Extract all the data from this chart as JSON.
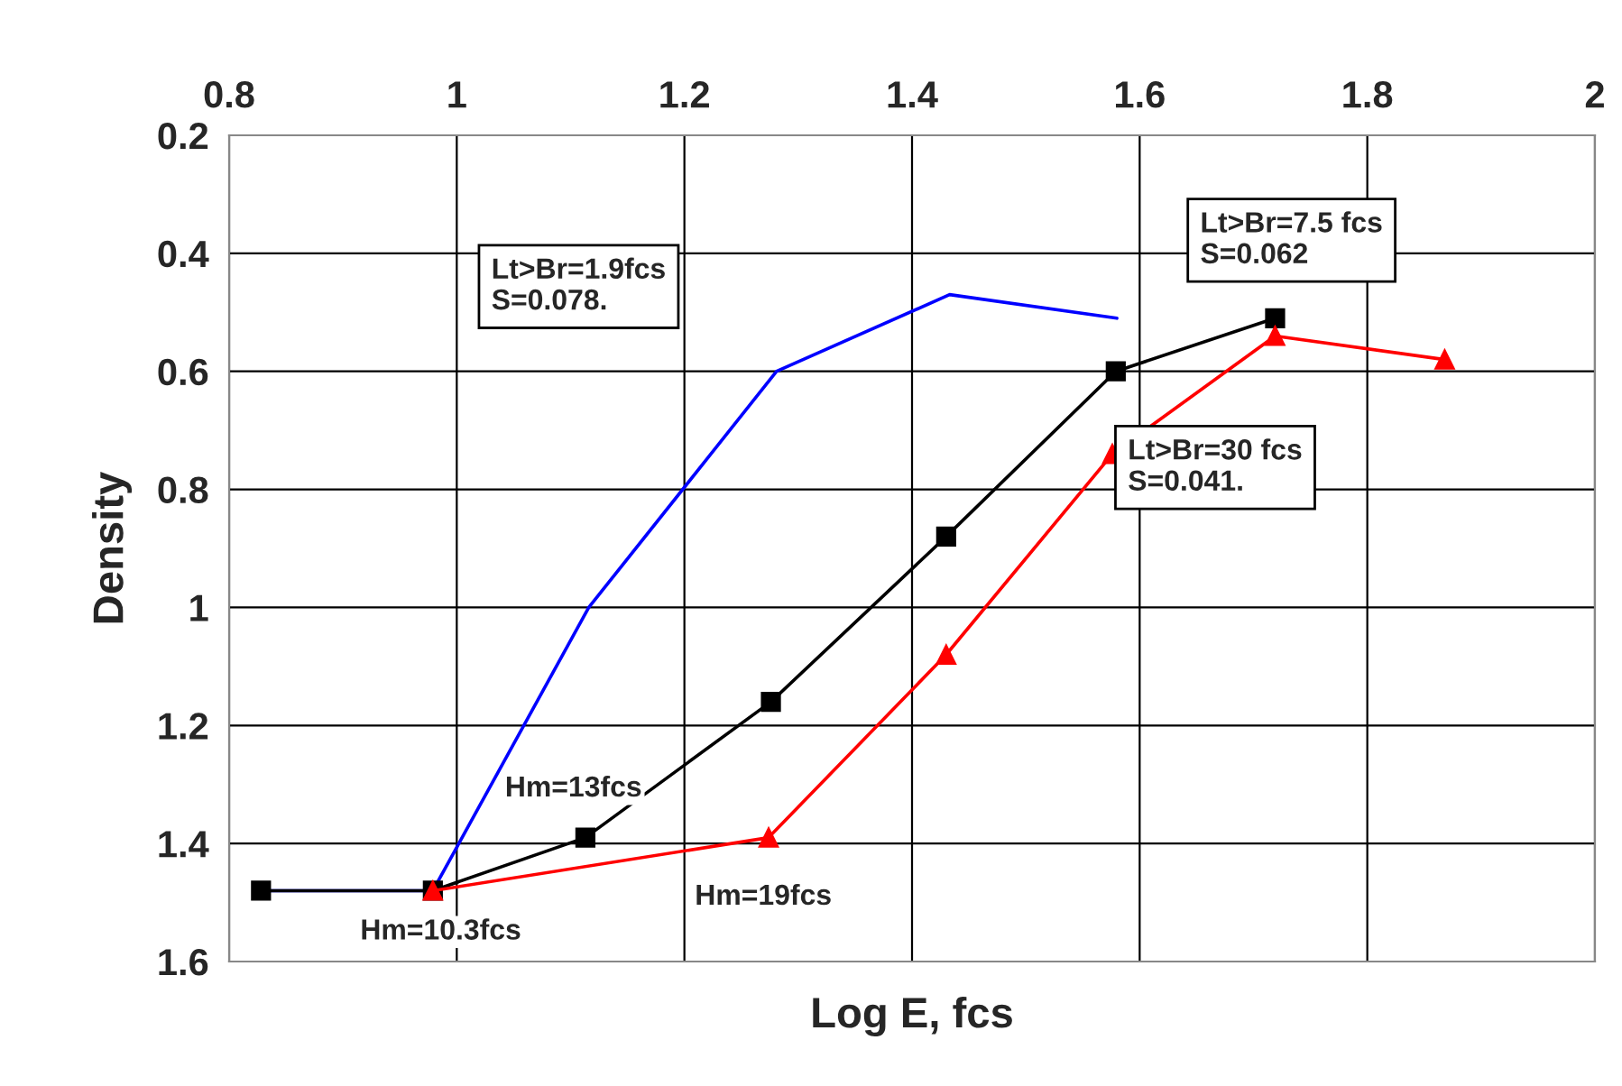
{
  "chart_data": {
    "type": "line",
    "xlabel": "Log E, fcs",
    "ylabel": "Density",
    "xlim": [
      0.8,
      2
    ],
    "xticks": [
      0.8,
      1,
      1.2,
      1.4,
      1.6,
      1.8,
      2
    ],
    "ylim": [
      1.6,
      0.2
    ],
    "yticks": [
      0.2,
      0.4,
      0.6,
      0.8,
      1,
      1.2,
      1.4,
      1.6
    ],
    "grid": true,
    "legend": false,
    "series": [
      {
        "color": "#0000ff",
        "marker": "none",
        "x": [
          0.828,
          0.979,
          1.116,
          1.281,
          1.433,
          1.58
        ],
        "values": [
          1.48,
          1.48,
          1.0,
          0.6,
          0.47,
          0.51
        ]
      },
      {
        "color": "#000000",
        "marker": "square",
        "x": [
          0.828,
          0.979,
          1.113,
          1.276,
          1.43,
          1.579,
          1.719
        ],
        "values": [
          1.48,
          1.48,
          1.39,
          1.16,
          0.88,
          0.6,
          0.51
        ]
      },
      {
        "color": "#ff0000",
        "marker": "triangle",
        "x": [
          0.979,
          1.274,
          1.43,
          1.576,
          1.719,
          1.868
        ],
        "values": [
          1.48,
          1.39,
          1.08,
          0.74,
          0.54,
          0.58
        ]
      }
    ],
    "annotations": [
      "Lt>Br=1.9fcs\nS=0.078.",
      "Lt>Br=7.5 fcs\nS=0.062",
      "Lt>Br=30 fcs\nS=0.041.",
      "Hm=13fcs",
      "Hm=10.3fcs",
      "Hm=19fcs"
    ]
  }
}
